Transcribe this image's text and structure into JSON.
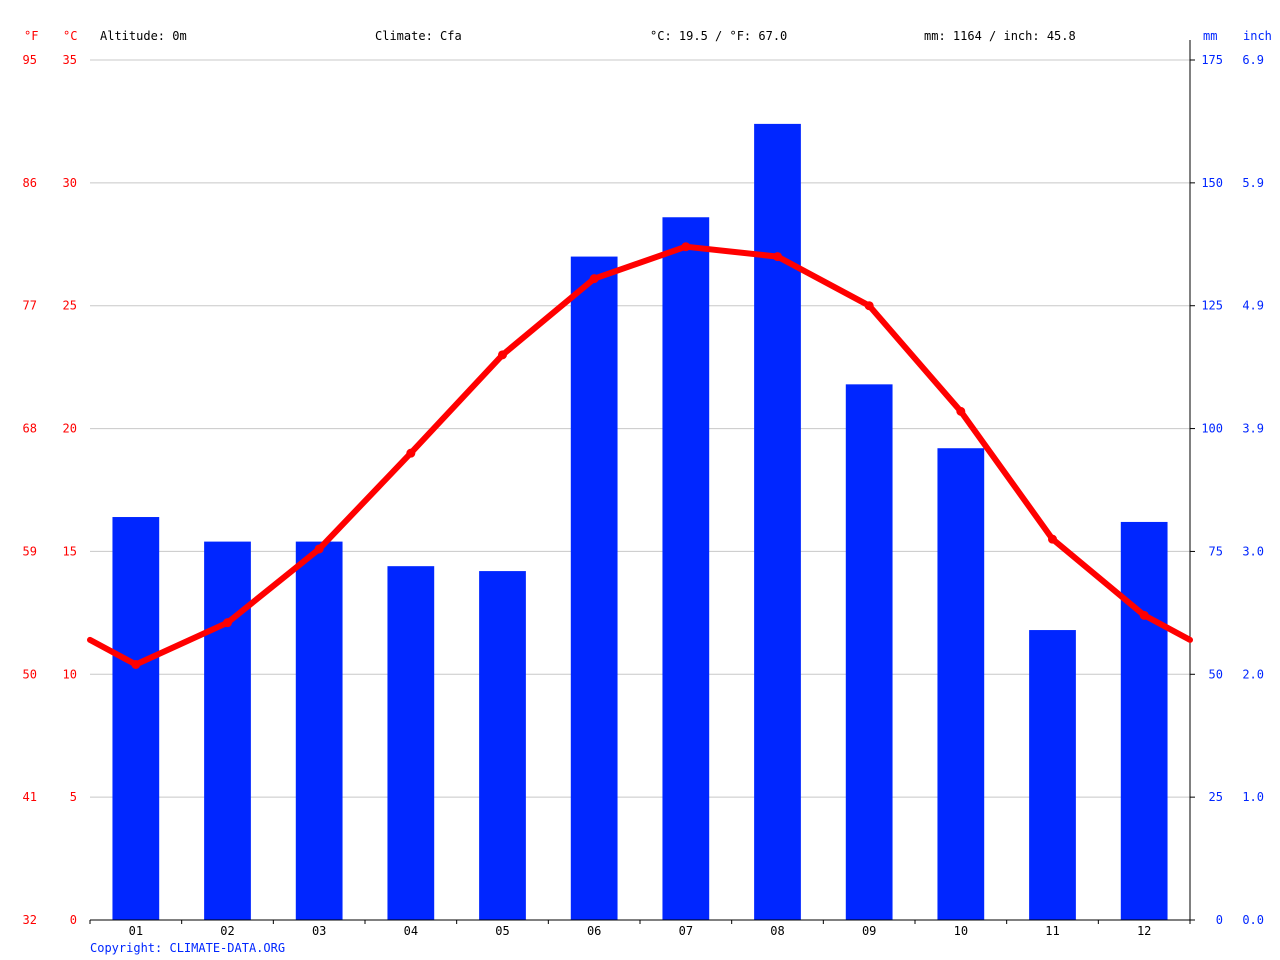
{
  "header": {
    "altitude": "Altitude: 0m",
    "climate": "Climate: Cfa",
    "temperature": "°C: 19.5 / °F: 67.0",
    "precipitation": "mm: 1164 / inch: 45.8"
  },
  "units": {
    "fahrenheit": "°F",
    "celsius": "°C",
    "mm": "mm",
    "inch": "inch"
  },
  "copyright": "Copyright: CLIMATE-DATA.ORG",
  "colors": {
    "temperature": "#ff0000",
    "precipitation": "#0026ff",
    "grid": "#c8c8c8",
    "axis": "#000000"
  },
  "chart_data": {
    "type": "bar",
    "categories": [
      "01",
      "02",
      "03",
      "04",
      "05",
      "06",
      "07",
      "08",
      "09",
      "10",
      "11",
      "12"
    ],
    "series": [
      {
        "type": "bar",
        "axis": "right",
        "unit": "mm",
        "values": [
          82,
          77,
          77,
          72,
          71,
          135,
          143,
          162,
          109,
          96,
          59,
          81
        ]
      },
      {
        "type": "line",
        "axis": "left",
        "unit": "°C",
        "values": [
          10.4,
          12.1,
          15.1,
          19.0,
          23.0,
          26.1,
          27.4,
          27.0,
          25.0,
          20.7,
          15.5,
          12.4
        ]
      }
    ],
    "y_left": {
      "unit": "°C",
      "range": [
        0,
        35
      ],
      "ticks": [
        0,
        5,
        10,
        15,
        20,
        25,
        30,
        35
      ],
      "ticks_fahrenheit": [
        "32",
        "41",
        "50",
        "59",
        "68",
        "77",
        "86",
        "95"
      ]
    },
    "y_right": {
      "unit": "mm",
      "range": [
        0,
        175
      ],
      "ticks": [
        0,
        25,
        50,
        75,
        100,
        125,
        150,
        175
      ],
      "ticks_inch": [
        "0.0",
        "1.0",
        "2.0",
        "3.0",
        "3.9",
        "4.9",
        "5.9",
        "6.9"
      ]
    },
    "grid": true
  }
}
